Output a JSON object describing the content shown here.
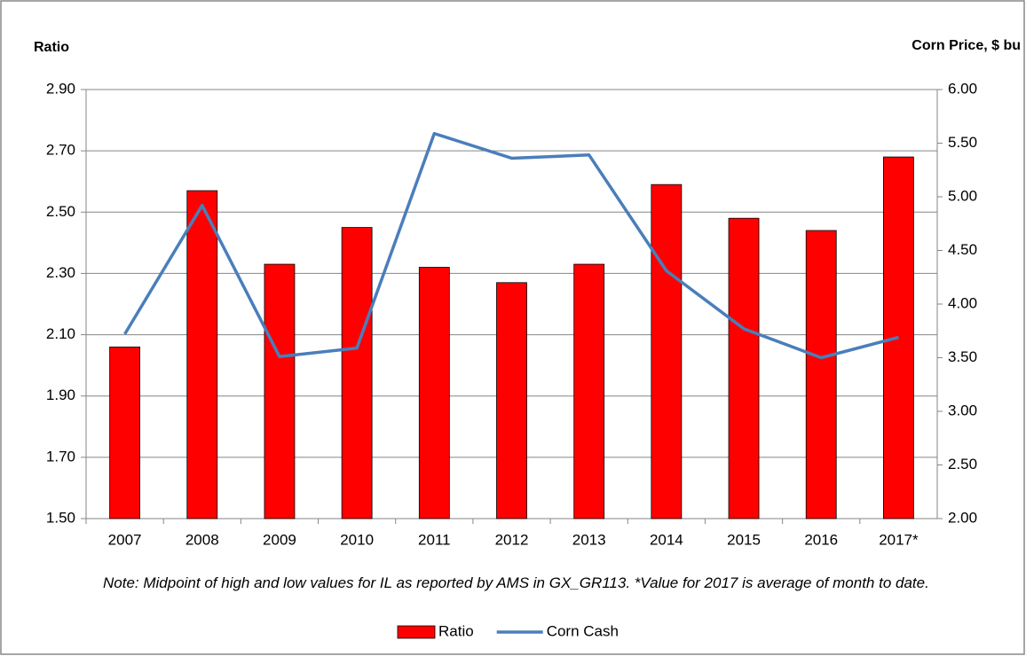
{
  "chart_data": {
    "type": "bar",
    "y_label": "Ratio",
    "y2_label": "Corn Price, $ bu",
    "note": "Note: Midpoint of high and low values for IL as reported by AMS in GX_GR113. *Value for 2017 is average of month to date.",
    "categories": [
      "2007",
      "2008",
      "2009",
      "2010",
      "2011",
      "2012",
      "2013",
      "2014",
      "2015",
      "2016",
      "2017*"
    ],
    "series": [
      {
        "name": "Ratio",
        "type": "bar",
        "color": "#ff0000",
        "values": [
          2.06,
          2.57,
          2.33,
          2.45,
          2.32,
          2.27,
          2.33,
          2.59,
          2.48,
          2.44,
          2.68
        ]
      },
      {
        "name": "Corn Cash",
        "type": "line",
        "axis": "y2",
        "color": "#4a7ebb",
        "values": [
          3.72,
          4.92,
          3.51,
          3.59,
          5.59,
          5.36,
          5.39,
          4.31,
          3.77,
          3.5,
          3.69
        ]
      }
    ],
    "ylim": [
      1.5,
      2.9
    ],
    "yticks": [
      {
        "value": 1.5,
        "label": "1.50"
      },
      {
        "value": 1.7,
        "label": "1.70"
      },
      {
        "value": 1.9,
        "label": "1.90"
      },
      {
        "value": 2.1,
        "label": "2.10"
      },
      {
        "value": 2.3,
        "label": "2.30"
      },
      {
        "value": 2.5,
        "label": "2.50"
      },
      {
        "value": 2.7,
        "label": "2.70"
      },
      {
        "value": 2.9,
        "label": "2.90"
      }
    ],
    "y2lim": [
      2,
      6
    ],
    "y2ticks": [
      {
        "value": 2,
        "label": "2.00"
      },
      {
        "value": 2.5,
        "label": "2.50"
      },
      {
        "value": 3,
        "label": "3.00"
      },
      {
        "value": 3.5,
        "label": "3.50"
      },
      {
        "value": 4,
        "label": "4.00"
      },
      {
        "value": 4.5,
        "label": "4.50"
      },
      {
        "value": 5,
        "label": "5.00"
      },
      {
        "value": 5.5,
        "label": "5.50"
      },
      {
        "value": 6,
        "label": "6.00"
      }
    ],
    "grid": true,
    "legend": "bottom"
  }
}
